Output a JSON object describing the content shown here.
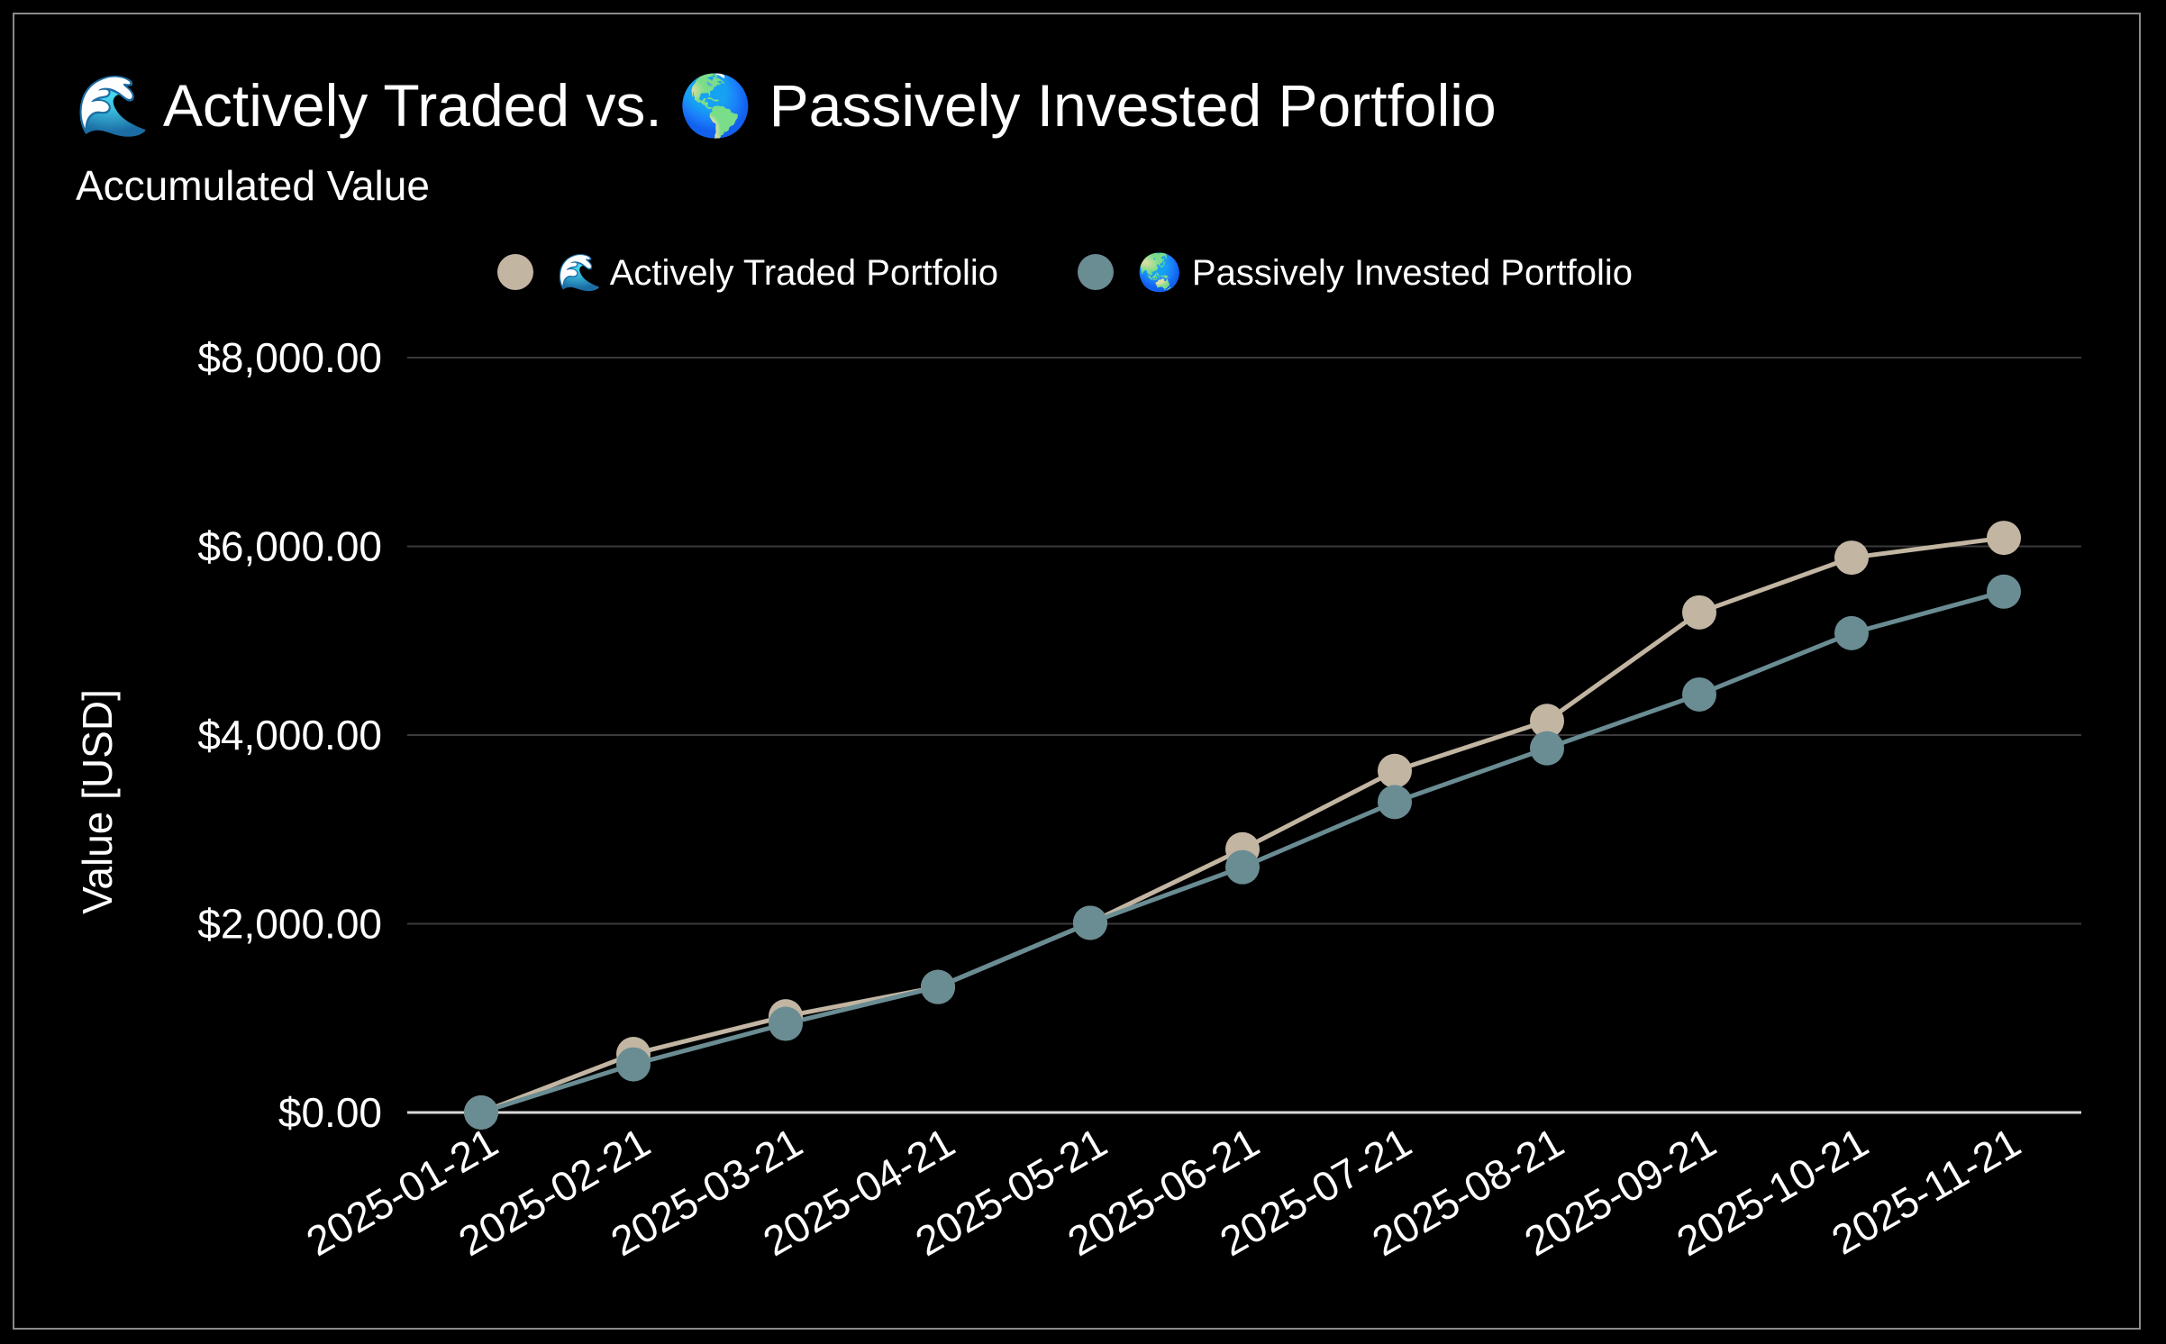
{
  "chart_data": {
    "type": "line",
    "title": "🌊 Actively Traded vs. 🌎 Passively Invested Portfolio",
    "subtitle": "Accumulated Value",
    "ylabel": "Value [USD]",
    "xlabel": "",
    "ylim": [
      0,
      8000
    ],
    "y_ticks": [
      0,
      2000,
      4000,
      6000,
      8000
    ],
    "y_tick_labels": [
      "$0.00",
      "$2,000.00",
      "$4,000.00",
      "$6,000.00",
      "$8,000.00"
    ],
    "grid": true,
    "legend_position": "top-center",
    "categories": [
      "2025-01-21",
      "2025-02-21",
      "2025-03-21",
      "2025-04-21",
      "2025-05-21",
      "2025-06-21",
      "2025-07-21",
      "2025-08-21",
      "2025-09-21",
      "2025-10-21",
      "2025-11-21"
    ],
    "series": [
      {
        "name": "🌊 Actively Traded Portfolio",
        "color": "#c2b5a2",
        "values": [
          0,
          620,
          1020,
          1330,
          2010,
          2790,
          3620,
          4150,
          5300,
          5880,
          6090
        ]
      },
      {
        "name": "🌏 Passively Invested Portfolio",
        "color": "#6a8c93",
        "values": [
          0,
          510,
          940,
          1330,
          2010,
          2600,
          3290,
          3860,
          4430,
          5080,
          5520
        ]
      }
    ]
  },
  "colors": {
    "background": "#000000",
    "text": "#ffffff",
    "grid": "#3a3a3a",
    "axis": "#d8d8d8",
    "frame": "#8a8a8a"
  }
}
